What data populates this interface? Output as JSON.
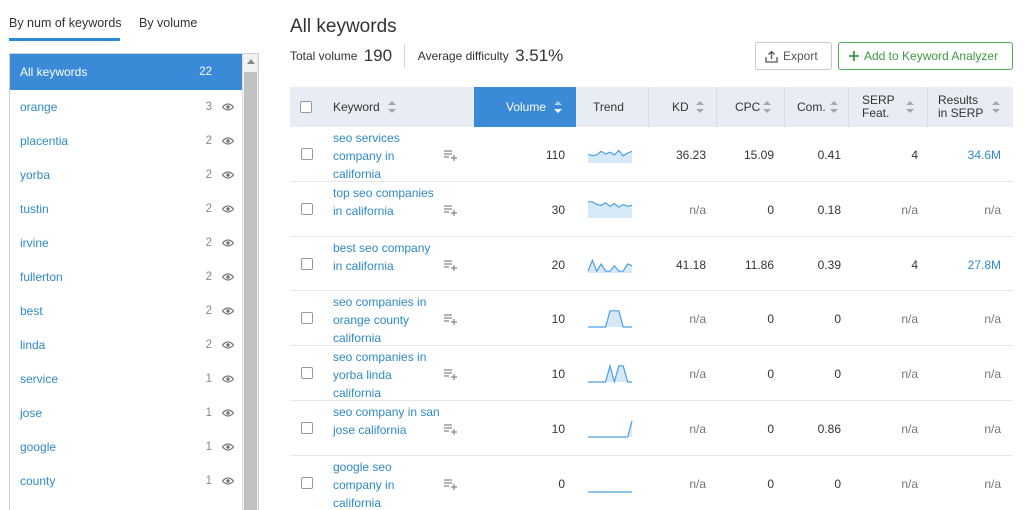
{
  "tabs": [
    {
      "label": "By num of keywords"
    },
    {
      "label": "By volume"
    }
  ],
  "keyword_groups": [
    {
      "label": "All keywords",
      "count": "22",
      "active": true
    },
    {
      "label": "orange",
      "count": "3"
    },
    {
      "label": "placentia",
      "count": "2"
    },
    {
      "label": "yorba",
      "count": "2"
    },
    {
      "label": "tustin",
      "count": "2"
    },
    {
      "label": "irvine",
      "count": "2"
    },
    {
      "label": "fullerton",
      "count": "2"
    },
    {
      "label": "best",
      "count": "2"
    },
    {
      "label": "linda",
      "count": "2"
    },
    {
      "label": "service",
      "count": "1"
    },
    {
      "label": "jose",
      "count": "1"
    },
    {
      "label": "google",
      "count": "1"
    },
    {
      "label": "county",
      "count": "1"
    }
  ],
  "header": {
    "title": "All keywords",
    "total_volume_label": "Total volume",
    "total_volume_value": "190",
    "avg_difficulty_label": "Average difficulty",
    "avg_difficulty_value": "3.51%",
    "export_label": "Export",
    "add_label": "Add to Keyword Analyzer"
  },
  "columns": {
    "keyword": "Keyword",
    "volume": "Volume",
    "trend": "Trend",
    "kd": "KD",
    "cpc": "CPC",
    "com": "Com.",
    "serp_line1": "SERP",
    "serp_line2": "Feat.",
    "results_line1": "Results",
    "results_line2": "in SERP"
  },
  "colors": {
    "accent": "#3a8ad8",
    "link": "#2e8ac6",
    "add_button": "#4caf50",
    "trend_stroke": "#4a9fe0",
    "trend_fill": "#d6e9f8"
  },
  "rows": [
    {
      "keyword": "seo services company in california",
      "volume": "110",
      "trend": [
        0.5,
        0.6,
        0.55,
        0.35,
        0.5,
        0.4,
        0.55,
        0.3,
        0.6,
        0.45,
        0.35
      ],
      "kd": "36.23",
      "cpc": "15.09",
      "com": "0.41",
      "serp": "4",
      "results": "34.6M",
      "results_link": true
    },
    {
      "keyword": "top seo companies in california",
      "volume": "30",
      "trend": [
        0.1,
        0.1,
        0.25,
        0.3,
        0.15,
        0.35,
        0.2,
        0.4,
        0.25,
        0.35,
        0.3
      ],
      "kd": "n/a",
      "cpc": "0",
      "com": "0.18",
      "serp": "n/a",
      "results": "n/a",
      "results_link": false
    },
    {
      "keyword": "best seo company in california",
      "volume": "20",
      "trend": [
        0.9,
        0.3,
        0.9,
        0.5,
        0.9,
        0.9,
        0.6,
        0.9,
        0.9,
        0.5,
        0.6
      ],
      "kd": "41.18",
      "cpc": "11.86",
      "com": "0.39",
      "serp": "4",
      "results": "27.8M",
      "results_link": true
    },
    {
      "keyword": "seo companies in orange county california",
      "volume": "10",
      "trend": [
        1,
        1,
        1,
        1,
        1,
        0.1,
        0.1,
        0.1,
        1,
        1,
        1
      ],
      "kd": "n/a",
      "cpc": "0",
      "com": "0",
      "serp": "n/a",
      "results": "n/a",
      "results_link": false
    },
    {
      "keyword": "seo companies in yorba linda california",
      "volume": "10",
      "trend": [
        1,
        1,
        1,
        1,
        1,
        0.1,
        1,
        0.1,
        0.1,
        1,
        1
      ],
      "kd": "n/a",
      "cpc": "0",
      "com": "0",
      "serp": "n/a",
      "results": "n/a",
      "results_link": false
    },
    {
      "keyword": "seo company in san jose california",
      "volume": "10",
      "trend": [
        1,
        1,
        1,
        1,
        1,
        1,
        1,
        1,
        1,
        1,
        0.1
      ],
      "kd": "n/a",
      "cpc": "0",
      "com": "0.86",
      "serp": "n/a",
      "results": "n/a",
      "results_link": false
    },
    {
      "keyword": "google seo company in california",
      "volume": "0",
      "trend": [
        1,
        1,
        1,
        1,
        1,
        1,
        1,
        1,
        1,
        1,
        1
      ],
      "kd": "n/a",
      "cpc": "0",
      "com": "0",
      "serp": "n/a",
      "results": "n/a",
      "results_link": false
    }
  ]
}
